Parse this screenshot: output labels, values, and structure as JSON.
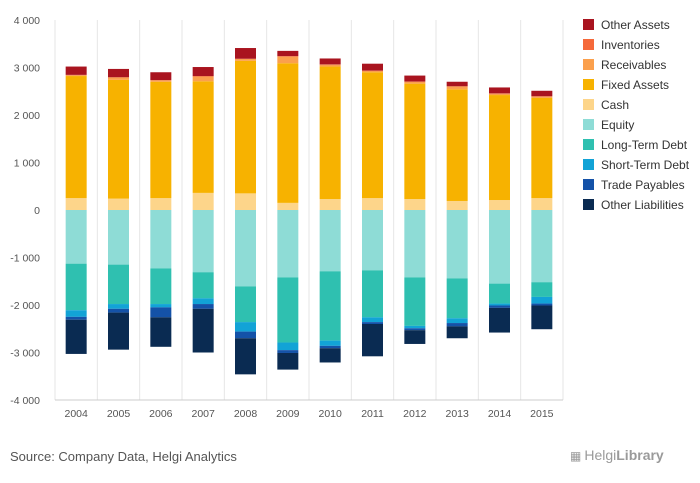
{
  "chart_data": {
    "type": "bar",
    "stacked": true,
    "categories": [
      "2004",
      "2005",
      "2006",
      "2007",
      "2008",
      "2009",
      "2010",
      "2011",
      "2012",
      "2013",
      "2014",
      "2015"
    ],
    "ylim": [
      -4000,
      4000
    ],
    "yticks": [
      4000,
      3000,
      2000,
      1000,
      0,
      -1000,
      -2000,
      -3000,
      -4000
    ],
    "ytick_labels": [
      "4 000",
      "3 000",
      "2 000",
      "1 000",
      "0",
      "-1 000",
      "-2 000",
      "-3 000",
      "-4 000"
    ],
    "legend_position": "right",
    "grid": "vertical",
    "positive_series": [
      {
        "name": "Cash",
        "color": "#fdd58a",
        "values": [
          250,
          240,
          250,
          360,
          350,
          150,
          230,
          250,
          230,
          190,
          210,
          250
        ]
      },
      {
        "name": "Fixed Assets",
        "color": "#f7b200",
        "values": [
          2570,
          2500,
          2450,
          2350,
          2790,
          2940,
          2790,
          2650,
          2430,
          2350,
          2210,
          2110
        ]
      },
      {
        "name": "Receivables",
        "color": "#fba04d",
        "values": [
          20,
          50,
          30,
          100,
          40,
          140,
          40,
          30,
          40,
          60,
          30,
          30
        ]
      },
      {
        "name": "Inventories",
        "color": "#f5693a",
        "values": [
          5,
          5,
          5,
          10,
          5,
          10,
          5,
          5,
          5,
          5,
          5,
          5
        ]
      },
      {
        "name": "Other Assets",
        "color": "#a9141f",
        "values": [
          175,
          175,
          165,
          190,
          225,
          110,
          125,
          145,
          125,
          95,
          125,
          115
        ]
      }
    ],
    "negative_series": [
      {
        "name": "Equity",
        "color": "#8edcd6",
        "values": [
          -1130,
          -1150,
          -1230,
          -1310,
          -1610,
          -1420,
          -1290,
          -1270,
          -1420,
          -1440,
          -1550,
          -1520
        ]
      },
      {
        "name": "Long-Term Debt",
        "color": "#2fc0b0",
        "values": [
          -980,
          -830,
          -750,
          -550,
          -750,
          -1370,
          -1460,
          -990,
          -1020,
          -840,
          -420,
          -310
        ]
      },
      {
        "name": "Short-Term Debt",
        "color": "#12a3d6",
        "values": [
          -140,
          -100,
          -70,
          -120,
          -200,
          -160,
          -110,
          -100,
          -50,
          -100,
          -40,
          -140
        ]
      },
      {
        "name": "Trade Payables",
        "color": "#1452a8",
        "values": [
          -60,
          -80,
          -210,
          -100,
          -140,
          -60,
          -50,
          -40,
          -40,
          -70,
          -50,
          -40
        ]
      },
      {
        "name": "Other Liabilities",
        "color": "#0a2b52",
        "values": [
          -720,
          -780,
          -620,
          -920,
          -760,
          -350,
          -300,
          -680,
          -290,
          -250,
          -520,
          -500
        ]
      }
    ],
    "legend": [
      {
        "name": "Other Assets",
        "color": "#a9141f"
      },
      {
        "name": "Inventories",
        "color": "#f5693a"
      },
      {
        "name": "Receivables",
        "color": "#fba04d"
      },
      {
        "name": "Fixed Assets",
        "color": "#f7b200"
      },
      {
        "name": "Cash",
        "color": "#fdd58a"
      },
      {
        "name": "Equity",
        "color": "#8edcd6"
      },
      {
        "name": "Long-Term Debt",
        "color": "#2fc0b0"
      },
      {
        "name": "Short-Term Debt",
        "color": "#12a3d6"
      },
      {
        "name": "Trade Payables",
        "color": "#1452a8"
      },
      {
        "name": "Other Liabilities",
        "color": "#0a2b52"
      }
    ]
  },
  "footer": {
    "source": "Source: Company Data, Helgi Analytics",
    "logo_part1": "Helgi",
    "logo_part2": "Library"
  }
}
